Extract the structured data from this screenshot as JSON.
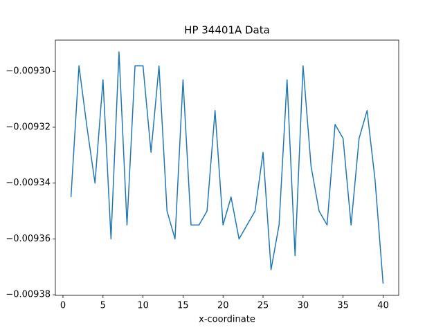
{
  "chart_data": {
    "type": "line",
    "title": "HP 34401A Data",
    "xlabel": "x-coordinate",
    "x": [
      1,
      2,
      3,
      4,
      5,
      6,
      7,
      8,
      9,
      10,
      11,
      12,
      13,
      14,
      15,
      16,
      17,
      18,
      19,
      20,
      21,
      22,
      23,
      24,
      25,
      26,
      27,
      28,
      29,
      30,
      31,
      32,
      33,
      34,
      35,
      36,
      37,
      38,
      39,
      40
    ],
    "series": [
      {
        "color": "#1f77b4",
        "values": [
          -0.009345,
          -0.009298,
          -0.00932,
          -0.00934,
          -0.009303,
          -0.00936,
          -0.009293,
          -0.009355,
          -0.009298,
          -0.009298,
          -0.009329,
          -0.009298,
          -0.00935,
          -0.00936,
          -0.009303,
          -0.009355,
          -0.009355,
          -0.00935,
          -0.009314,
          -0.009355,
          -0.009345,
          -0.00936,
          -0.009355,
          -0.00935,
          -0.009329,
          -0.009371,
          -0.009355,
          -0.009303,
          -0.009366,
          -0.009298,
          -0.009334,
          -0.00935,
          -0.009355,
          -0.009319,
          -0.009324,
          -0.009355,
          -0.009324,
          -0.009314,
          -0.009339,
          -0.009376
        ]
      }
    ],
    "xlim": [
      -0.95,
      41.95
    ],
    "xticks": [
      0,
      5,
      10,
      15,
      20,
      25,
      30,
      35,
      40
    ],
    "ylim": [
      -0.0093802,
      -0.0092888
    ],
    "yticks": [
      {
        "value": -0.0093,
        "label": "−0.00930"
      },
      {
        "value": -0.00932,
        "label": "−0.00932"
      },
      {
        "value": -0.00934,
        "label": "−0.00934"
      },
      {
        "value": -0.00936,
        "label": "−0.00936"
      },
      {
        "value": -0.00938,
        "label": "−0.00938"
      }
    ],
    "grid": false
  }
}
